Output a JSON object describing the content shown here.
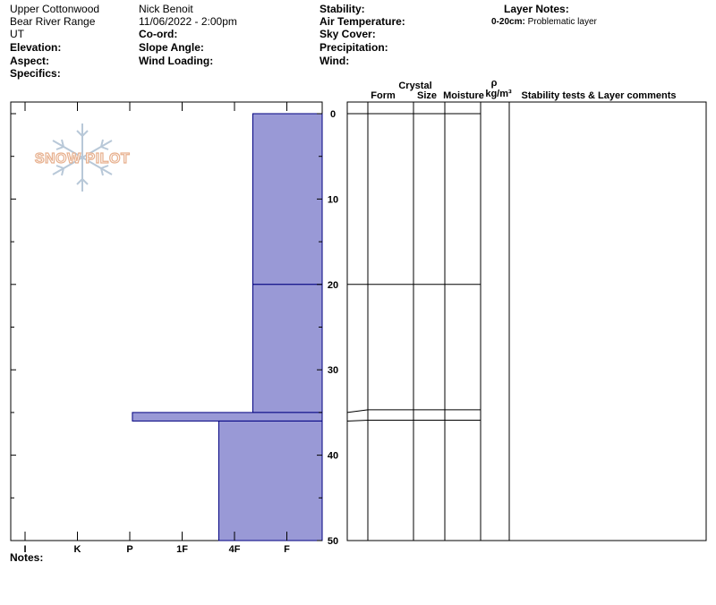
{
  "header": {
    "location": "Upper Cottonwood",
    "range": "Bear River Range",
    "state": "UT",
    "observer": "Nick Benoit",
    "datetime": "11/06/2022 - 2:00pm",
    "elevation_label": "Elevation:",
    "aspect_label": "Aspect:",
    "specifics_label": "Specifics:",
    "coord_label": "Co-ord:",
    "slope_label": "Slope Angle:",
    "wind_loading_label": "Wind Loading:",
    "stability_label": "Stability:",
    "air_temp_label": "Air Temperature:",
    "sky_cover_label": "Sky Cover:",
    "precip_label": "Precipitation:",
    "wind_label": "Wind:",
    "layer_notes_label": "Layer Notes:",
    "layer_note_range": "0-20cm:",
    "layer_note_text": "Problematic layer"
  },
  "notes_label": "Notes:",
  "logo_text": "SNOW PILOT",
  "colors": {
    "layer_fill": "#9999d6",
    "layer_stroke": "#000080"
  },
  "columns": {
    "form": "Form",
    "crystal": "Crystal",
    "size": "Size",
    "moisture": "Moisture",
    "rho": "ρ",
    "density_unit": "kg/m³",
    "comments": "Stability tests & Layer comments"
  },
  "chart_data": {
    "type": "bar",
    "orientation": "horizontal-hardness-profile",
    "x_categories": [
      "I",
      "K",
      "P",
      "1F",
      "4F",
      "F"
    ],
    "y_ticks": [
      0,
      10,
      20,
      30,
      40,
      50
    ],
    "ylim": [
      0,
      50
    ],
    "y_inverted": true,
    "layers": [
      {
        "top": 0,
        "bottom": 20,
        "hardness_index": 4.35
      },
      {
        "top": 20,
        "bottom": 35,
        "hardness_index": 4.35
      },
      {
        "top": 35,
        "bottom": 36,
        "hardness_index": 2.05
      },
      {
        "top": 36,
        "bottom": 50,
        "hardness_index": 3.7
      }
    ]
  }
}
